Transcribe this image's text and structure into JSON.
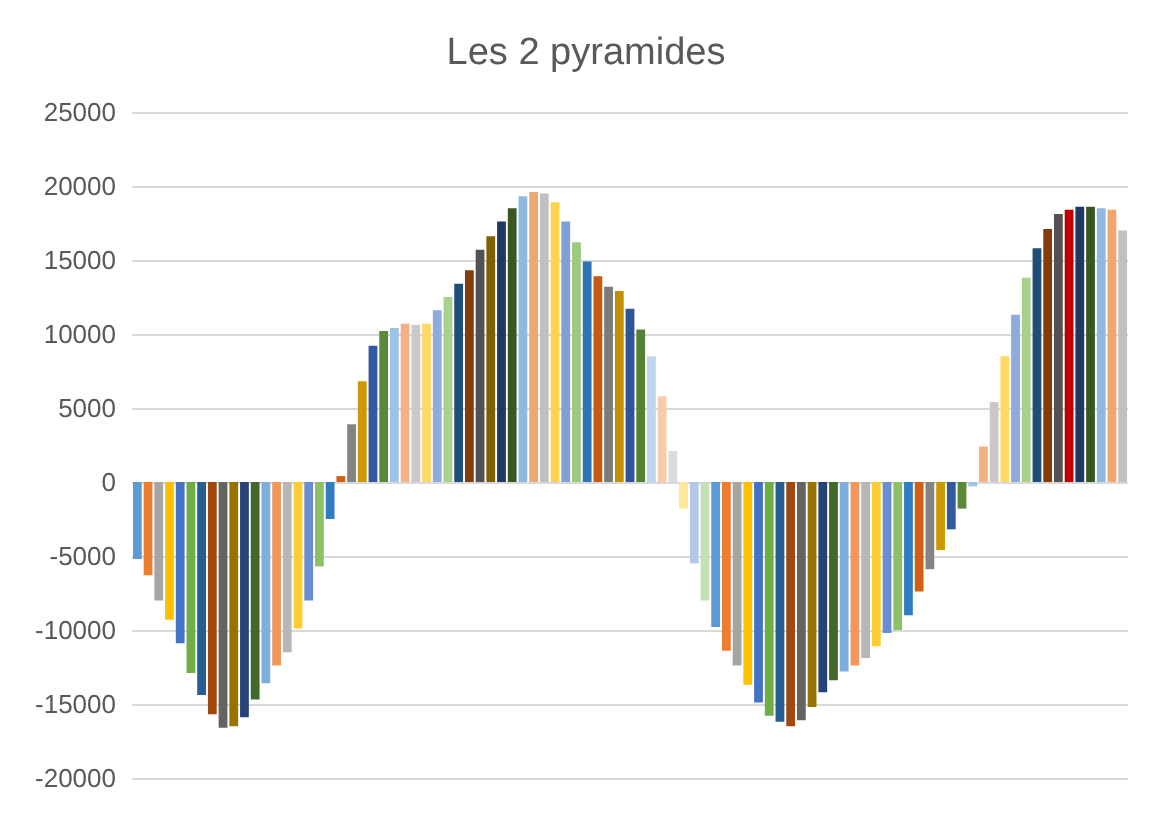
{
  "chart_data": {
    "type": "bar",
    "title": "Les 2 pyramides",
    "categories": [
      null,
      null,
      null,
      null,
      null,
      null,
      null,
      null,
      null,
      null,
      null,
      null,
      null,
      null,
      null,
      null,
      null,
      null,
      null,
      null,
      null,
      null,
      null,
      null,
      null,
      null,
      null,
      null,
      null,
      null,
      null,
      null,
      null,
      null,
      null,
      null,
      null,
      null,
      null,
      null,
      null,
      null,
      null,
      null,
      null,
      null,
      null,
      null,
      null,
      null,
      null,
      null,
      null,
      null,
      null,
      null,
      null,
      null,
      null,
      null,
      null,
      null,
      null,
      null,
      null,
      null,
      null,
      null,
      null,
      null,
      null,
      null,
      null,
      null,
      null,
      null,
      null,
      null,
      null,
      null,
      null,
      null,
      null,
      null,
      null,
      null,
      null,
      null,
      null,
      null,
      null,
      null,
      null
    ],
    "values": [
      -5200,
      -6300,
      -8000,
      -9300,
      -10900,
      -12900,
      -14400,
      -15700,
      -16600,
      -16500,
      -15900,
      -14700,
      -13600,
      -12400,
      -11500,
      -9900,
      -8000,
      -5700,
      -2500,
      400,
      3900,
      6800,
      9200,
      10200,
      10400,
      10700,
      10600,
      10700,
      11600,
      12500,
      13400,
      14300,
      15700,
      16600,
      17600,
      18500,
      19300,
      19600,
      19500,
      18900,
      17600,
      16200,
      14900,
      13900,
      13200,
      12900,
      11700,
      10300,
      8500,
      5800,
      2100,
      -1800,
      -5500,
      -8000,
      -9800,
      -11400,
      -12400,
      -13700,
      -14900,
      -15800,
      -16200,
      -16500,
      -16100,
      -15200,
      -14200,
      -13400,
      -12800,
      -12400,
      -11900,
      -11100,
      -10200,
      -10000,
      -9000,
      -7400,
      -5900,
      -4600,
      -3200,
      -1800,
      -300,
      2400,
      5400,
      8500,
      11300,
      13800,
      15800,
      17100,
      18100,
      18400,
      18600,
      18600,
      18500,
      18400,
      17000
    ],
    "colors": [
      "#5b9bd5",
      "#ed7d31",
      "#a5a5a5",
      "#ffc000",
      "#4472c4",
      "#70ad47",
      "#255e91",
      "#9e480e",
      "#636363",
      "#997300",
      "#264478",
      "#43682b",
      "#7cafdd",
      "#f1975a",
      "#b7b7b7",
      "#ffcd33",
      "#698ed0",
      "#8cc168",
      "#327dc2",
      "#d26012",
      "#848484",
      "#cc9a00",
      "#335aa1",
      "#5a8a39",
      "#9dc3e6",
      "#f4b183",
      "#c9c9c9",
      "#ffd966",
      "#8faadc",
      "#a9d18e",
      "#1f4e79",
      "#843c0c",
      "#525252",
      "#7f6000",
      "#203864",
      "#385723",
      "#8fb9e3",
      "#f0a672",
      "#c0c0c0",
      "#ffd34d",
      "#7f9fd6",
      "#9cc97e",
      "#2e75b6",
      "#c55a11",
      "#7b7b7b",
      "#bf9000",
      "#2f5597",
      "#548235",
      "#bdd7ee",
      "#f8cbad",
      "#dbdbdb",
      "#ffe699",
      "#b4c7e7",
      "#c5e0b4",
      "#5b9bd5",
      "#ed7d31",
      "#a5a5a5",
      "#ffc000",
      "#4472c4",
      "#70ad47",
      "#255e91",
      "#9e480e",
      "#636363",
      "#997300",
      "#264478",
      "#43682b",
      "#7cafdd",
      "#f1975a",
      "#b7b7b7",
      "#ffcd33",
      "#698ed0",
      "#8cc168",
      "#327dc2",
      "#d26012",
      "#848484",
      "#cc9a00",
      "#335aa1",
      "#5a8a39",
      "#9dc3e6",
      "#f4b183",
      "#c9c9c9",
      "#ffd966",
      "#8faadc",
      "#a9d18e",
      "#1f4e79",
      "#843c0c",
      "#525252",
      "#c00000",
      "#203864",
      "#385723",
      "#8fb9e3",
      "#f0a672",
      "#c0c0c0"
    ],
    "ylim": [
      -20000,
      25000
    ],
    "yticks": [
      -20000,
      -15000,
      -10000,
      -5000,
      0,
      5000,
      10000,
      15000,
      20000,
      25000
    ],
    "grid": "y"
  }
}
